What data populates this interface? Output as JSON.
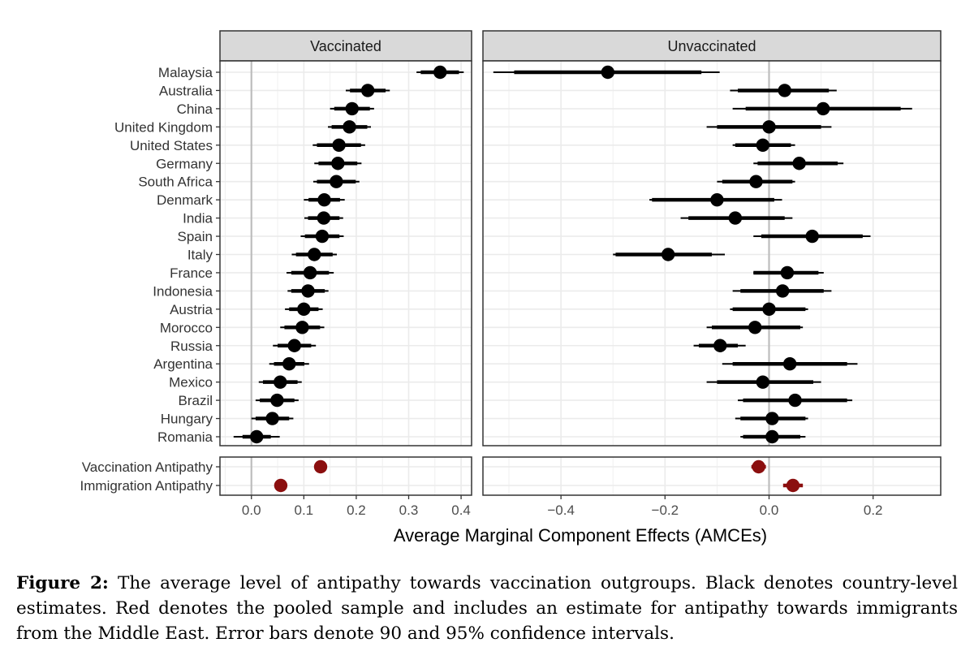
{
  "chart_data": {
    "type": "scatter",
    "subtype": "coefficient-plot-with-ci",
    "xlabel": "Average Marginal Component Effects (AMCEs)",
    "facets": [
      {
        "name": "Vaccinated",
        "xlim": [
          -0.06,
          0.42
        ],
        "ticks": [
          0.0,
          0.1,
          0.2,
          0.3,
          0.4
        ],
        "tick_labels": [
          "0.0",
          "0.1",
          "0.2",
          "0.3",
          "0.4"
        ]
      },
      {
        "name": "Unvaccinated",
        "xlim": [
          -0.55,
          0.33
        ],
        "ticks": [
          -0.4,
          -0.2,
          0.0,
          0.2
        ],
        "tick_labels": [
          "−0.4",
          "−0.2",
          "0.0",
          "0.2"
        ]
      }
    ],
    "countries": [
      "Malaysia",
      "Australia",
      "China",
      "United Kingdom",
      "United States",
      "Germany",
      "South Africa",
      "Denmark",
      "India",
      "Spain",
      "Italy",
      "France",
      "Indonesia",
      "Austria",
      "Morocco",
      "Russia",
      "Argentina",
      "Mexico",
      "Brazil",
      "Hungary",
      "Romania"
    ],
    "pooled_labels": [
      "Vaccination Antipathy",
      "Immigration Antipathy"
    ],
    "series": [
      {
        "name": "Vaccinated",
        "color": "#000000",
        "estimates": [
          0.36,
          0.222,
          0.192,
          0.187,
          0.167,
          0.165,
          0.162,
          0.139,
          0.138,
          0.135,
          0.12,
          0.112,
          0.108,
          0.1,
          0.097,
          0.082,
          0.072,
          0.055,
          0.049,
          0.04,
          0.01
        ],
        "ci90": [
          [
            0.323,
            0.396
          ],
          [
            0.188,
            0.256
          ],
          [
            0.158,
            0.226
          ],
          [
            0.153,
            0.221
          ],
          [
            0.125,
            0.209
          ],
          [
            0.128,
            0.202
          ],
          [
            0.125,
            0.199
          ],
          [
            0.109,
            0.169
          ],
          [
            0.108,
            0.168
          ],
          [
            0.102,
            0.168
          ],
          [
            0.085,
            0.155
          ],
          [
            0.076,
            0.148
          ],
          [
            0.076,
            0.14
          ],
          [
            0.072,
            0.128
          ],
          [
            0.063,
            0.131
          ],
          [
            0.05,
            0.114
          ],
          [
            0.043,
            0.101
          ],
          [
            0.022,
            0.088
          ],
          [
            0.016,
            0.082
          ],
          [
            0.008,
            0.072
          ],
          [
            -0.017,
            0.037
          ]
        ],
        "ci95": [
          [
            0.315,
            0.405
          ],
          [
            0.18,
            0.264
          ],
          [
            0.15,
            0.234
          ],
          [
            0.146,
            0.228
          ],
          [
            0.117,
            0.217
          ],
          [
            0.12,
            0.21
          ],
          [
            0.118,
            0.206
          ],
          [
            0.1,
            0.178
          ],
          [
            0.101,
            0.175
          ],
          [
            0.094,
            0.176
          ],
          [
            0.077,
            0.163
          ],
          [
            0.067,
            0.157
          ],
          [
            0.069,
            0.147
          ],
          [
            0.064,
            0.136
          ],
          [
            0.055,
            0.139
          ],
          [
            0.041,
            0.123
          ],
          [
            0.034,
            0.11
          ],
          [
            0.014,
            0.096
          ],
          [
            0.008,
            0.09
          ],
          [
            0.0,
            0.08
          ],
          [
            -0.034,
            0.054
          ]
        ]
      },
      {
        "name": "Unvaccinated",
        "color": "#000000",
        "estimates": [
          -0.31,
          0.03,
          0.104,
          0.0,
          -0.012,
          0.058,
          -0.025,
          -0.1,
          -0.065,
          0.083,
          -0.194,
          0.035,
          0.026,
          0.0,
          -0.027,
          -0.094,
          0.04,
          -0.012,
          0.05,
          0.006,
          0.006
        ],
        "ci90": [
          [
            -0.49,
            -0.13
          ],
          [
            -0.06,
            0.115
          ],
          [
            -0.045,
            0.253
          ],
          [
            -0.1,
            0.1
          ],
          [
            -0.065,
            0.042
          ],
          [
            -0.022,
            0.132
          ],
          [
            -0.09,
            0.045
          ],
          [
            -0.225,
            0.01
          ],
          [
            -0.155,
            0.03
          ],
          [
            -0.015,
            0.18
          ],
          [
            -0.295,
            -0.11
          ],
          [
            -0.03,
            0.095
          ],
          [
            -0.055,
            0.105
          ],
          [
            -0.07,
            0.07
          ],
          [
            -0.11,
            0.06
          ],
          [
            -0.135,
            -0.06
          ],
          [
            -0.07,
            0.15
          ],
          [
            -0.1,
            0.085
          ],
          [
            -0.05,
            0.15
          ],
          [
            -0.055,
            0.07
          ],
          [
            -0.05,
            0.06
          ]
        ],
        "ci95": [
          [
            -0.53,
            -0.095
          ],
          [
            -0.075,
            0.13
          ],
          [
            -0.07,
            0.275
          ],
          [
            -0.12,
            0.12
          ],
          [
            -0.07,
            0.05
          ],
          [
            -0.03,
            0.143
          ],
          [
            -0.1,
            0.05
          ],
          [
            -0.23,
            0.025
          ],
          [
            -0.17,
            0.045
          ],
          [
            -0.03,
            0.195
          ],
          [
            -0.3,
            -0.085
          ],
          [
            -0.03,
            0.105
          ],
          [
            -0.07,
            0.12
          ],
          [
            -0.075,
            0.075
          ],
          [
            -0.12,
            0.065
          ],
          [
            -0.145,
            -0.045
          ],
          [
            -0.09,
            0.17
          ],
          [
            -0.12,
            0.1
          ],
          [
            -0.06,
            0.16
          ],
          [
            -0.065,
            0.075
          ],
          [
            -0.055,
            0.07
          ]
        ]
      }
    ],
    "pooled": {
      "color": "#8b0f0f",
      "Vaccinated": {
        "estimates": [
          0.132,
          0.056
        ],
        "ci95": [
          [
            0.127,
            0.137
          ],
          [
            0.051,
            0.061
          ]
        ]
      },
      "Unvaccinated": {
        "estimates": [
          -0.02,
          0.046
        ],
        "ci95": [
          [
            -0.034,
            -0.006
          ],
          [
            0.027,
            0.065
          ]
        ]
      }
    }
  },
  "caption": {
    "label": "Figure 2:",
    "text": " The average level of antipathy towards vaccination outgroups. Black denotes country-level estimates. Red denotes the pooled sample and includes an estimate for antipathy towards immigrants from the Middle East. Error bars denote 90 and 95% confidence intervals."
  }
}
